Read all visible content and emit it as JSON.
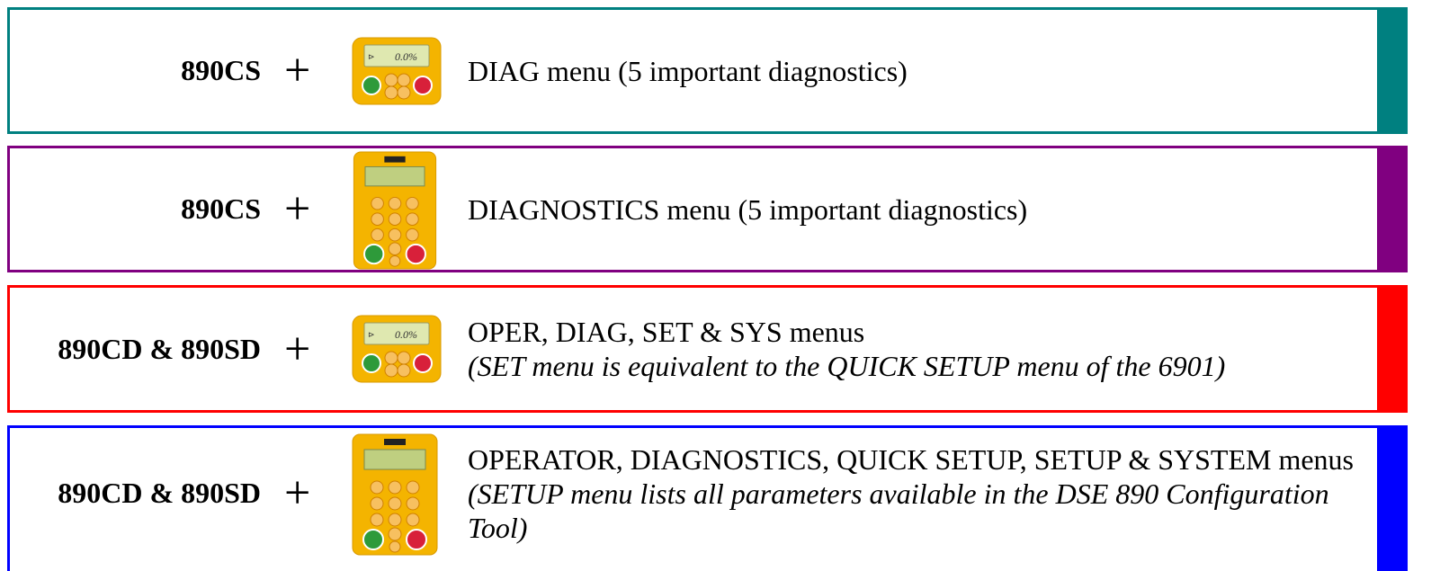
{
  "rows": [
    {
      "model": "890CS",
      "operator": "+",
      "description": "DIAG menu (5 important diagnostics)"
    },
    {
      "model": "890CS",
      "operator": "+",
      "description": "DIAGNOSTICS menu (5 important diagnostics)"
    },
    {
      "model": "890CD & 890SD",
      "operator": "+",
      "description": "OPER, DIAG, SET & SYS menus",
      "note": "(SET menu is equivalent to the QUICK SETUP menu of the 6901)"
    },
    {
      "model": "890CD & 890SD",
      "operator": "+",
      "description": "OPERATOR, DIAGNOSTICS, QUICK SETUP, SETUP & SYSTEM menus",
      "note": "(SETUP menu lists all parameters available in the DSE 890 Configuration Tool)"
    }
  ]
}
